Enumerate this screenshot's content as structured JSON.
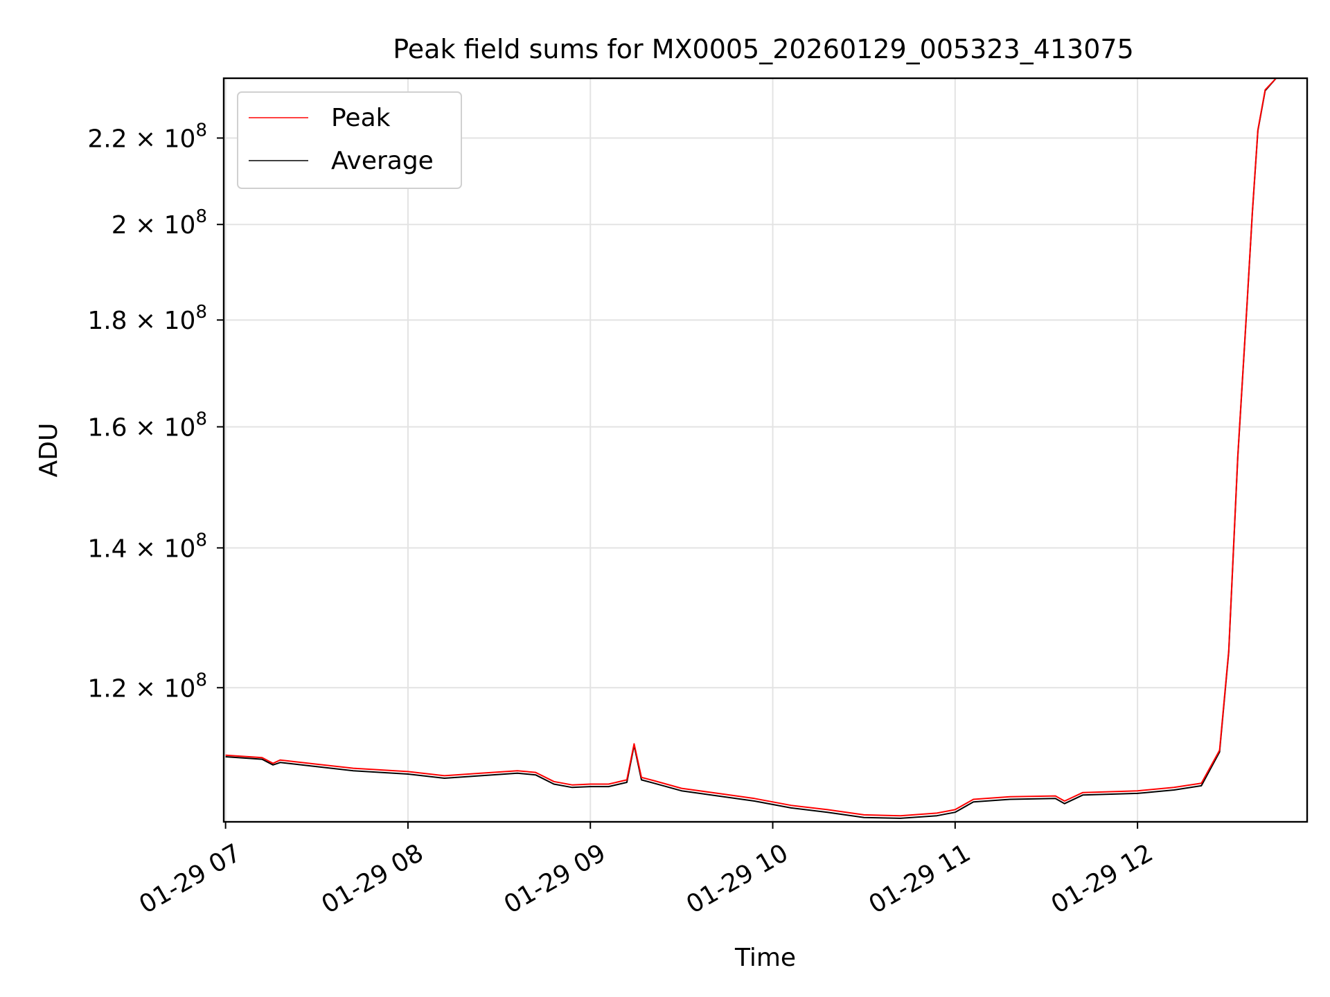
{
  "chart_data": {
    "type": "line",
    "title": "Peak field sums for MX0005_20260129_005323_413075",
    "xlabel": "Time",
    "ylabel": "ADU",
    "x_unit": "hours",
    "xlim": [
      6.99,
      12.93
    ],
    "ylim": [
      103500000,
      235000000
    ],
    "yscale": "log",
    "grid": true,
    "legend": "top-left",
    "x_ticks": [
      {
        "value": 7,
        "label": "01-29 07"
      },
      {
        "value": 8,
        "label": "01-29 08"
      },
      {
        "value": 9,
        "label": "01-29 09"
      },
      {
        "value": 10,
        "label": "01-29 10"
      },
      {
        "value": 11,
        "label": "01-29 11"
      },
      {
        "value": 12,
        "label": "01-29 12"
      }
    ],
    "y_ticks": [
      {
        "value": 120000000,
        "mantissa": "1.2",
        "exp": "8"
      },
      {
        "value": 140000000,
        "mantissa": "1.4",
        "exp": "8"
      },
      {
        "value": 160000000,
        "mantissa": "1.6",
        "exp": "8"
      },
      {
        "value": 180000000,
        "mantissa": "1.8",
        "exp": "8"
      },
      {
        "value": 200000000,
        "mantissa": "2",
        "exp": "8"
      },
      {
        "value": 220000000,
        "mantissa": "2.2",
        "exp": "8"
      }
    ],
    "series": [
      {
        "name": "Peak",
        "color": "#ff0000",
        "x": [
          7.0,
          7.2,
          7.26,
          7.3,
          7.5,
          7.7,
          8.0,
          8.2,
          8.4,
          8.6,
          8.7,
          8.8,
          8.9,
          9.0,
          9.1,
          9.2,
          9.24,
          9.28,
          9.35,
          9.5,
          9.7,
          9.9,
          10.1,
          10.3,
          10.5,
          10.7,
          10.9,
          11.0,
          11.1,
          11.3,
          11.55,
          11.6,
          11.7,
          12.0,
          12.2,
          12.35,
          12.45,
          12.5,
          12.55,
          12.6,
          12.63,
          12.66,
          12.7,
          12.76
        ],
        "y": [
          111400000,
          111100000,
          110400000,
          110800000,
          110300000,
          109800000,
          109400000,
          108900000,
          109200000,
          109500000,
          109300000,
          108200000,
          107800000,
          107900000,
          107900000,
          108400000,
          112800000,
          108700000,
          108300000,
          107400000,
          106800000,
          106200000,
          105400000,
          104900000,
          104300000,
          104200000,
          104500000,
          104900000,
          106100000,
          106400000,
          106500000,
          105900000,
          106900000,
          107100000,
          107500000,
          108000000,
          112000000,
          125000000,
          155000000,
          183000000,
          203000000,
          222000000,
          232000000,
          235000000
        ]
      },
      {
        "name": "Average",
        "color": "#000000",
        "x": [
          7.0,
          7.2,
          7.26,
          7.3,
          7.5,
          7.7,
          8.0,
          8.2,
          8.4,
          8.6,
          8.7,
          8.8,
          8.9,
          9.0,
          9.1,
          9.2,
          9.24,
          9.28,
          9.35,
          9.5,
          9.7,
          9.9,
          10.1,
          10.3,
          10.5,
          10.7,
          10.9,
          11.0,
          11.1,
          11.3,
          11.55,
          11.6,
          11.7,
          12.0,
          12.2,
          12.35,
          12.45,
          12.5,
          12.55,
          12.6,
          12.63,
          12.66,
          12.7,
          12.76
        ],
        "y": [
          111200000,
          110900000,
          110200000,
          110500000,
          110000000,
          109500000,
          109100000,
          108600000,
          108900000,
          109200000,
          109000000,
          107900000,
          107500000,
          107600000,
          107600000,
          108100000,
          112600000,
          108400000,
          108000000,
          107100000,
          106500000,
          105900000,
          105100000,
          104600000,
          104000000,
          103900000,
          104200000,
          104600000,
          105800000,
          106100000,
          106200000,
          105600000,
          106600000,
          106800000,
          107200000,
          107700000,
          111800000,
          124800000,
          154800000,
          182800000,
          202800000,
          221800000,
          231800000,
          235000000
        ]
      }
    ]
  }
}
